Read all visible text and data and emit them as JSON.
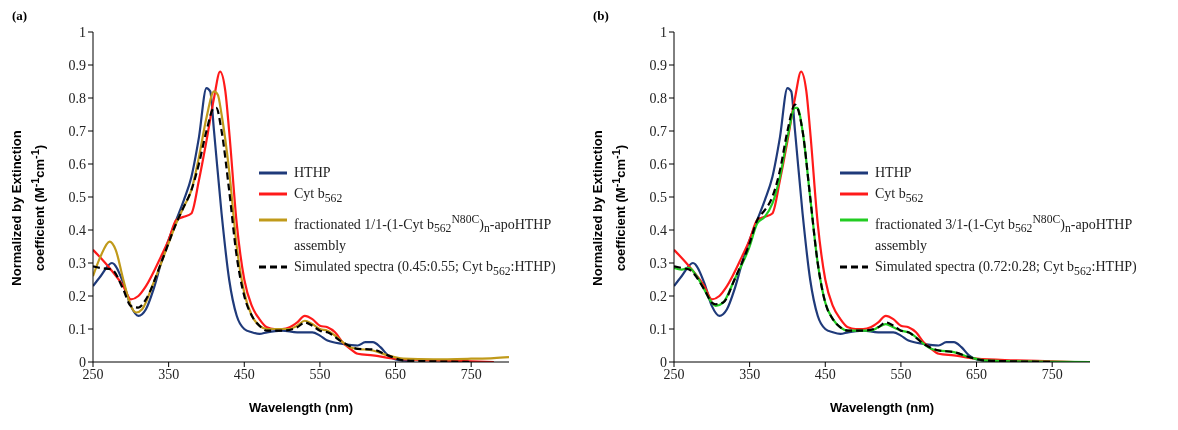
{
  "chart_data": [
    {
      "type": "line",
      "title": "(a)",
      "xlabel": "Wavelength (nm)",
      "ylabel": "Normalized by Extinction coefficient (M$^{-1}$cm$^{-1}$)",
      "xlim": [
        250,
        800
      ],
      "xticks": [
        250,
        350,
        450,
        550,
        650,
        750
      ],
      "ylim": [
        0,
        1
      ],
      "yticks": [
        0,
        0.1,
        0.2,
        0.3,
        0.4,
        0.5,
        0.6,
        0.7,
        0.8,
        0.9,
        1
      ],
      "legend": "right",
      "marker": "none",
      "series": [
        {
          "name": "HTHP",
          "color": "#1f3a7a",
          "line_style": "solid",
          "x": [
            250,
            260,
            275,
            290,
            300,
            310,
            320,
            330,
            340,
            350,
            360,
            370,
            380,
            390,
            400,
            405,
            410,
            420,
            430,
            440,
            450,
            460,
            470,
            480,
            500,
            520,
            540,
            550,
            560,
            580,
            600,
            610,
            620,
            630,
            640,
            650,
            670
          ],
          "values": [
            0.23,
            0.26,
            0.3,
            0.24,
            0.17,
            0.14,
            0.16,
            0.22,
            0.3,
            0.37,
            0.43,
            0.49,
            0.56,
            0.68,
            0.83,
            0.82,
            0.7,
            0.45,
            0.25,
            0.14,
            0.1,
            0.09,
            0.085,
            0.09,
            0.095,
            0.09,
            0.09,
            0.08,
            0.065,
            0.055,
            0.05,
            0.06,
            0.06,
            0.045,
            0.02,
            0.008,
            0.003
          ]
        },
        {
          "name": "Cyt b$_{562}$",
          "color": "#ff1a1a",
          "line_style": "solid",
          "x": [
            250,
            270,
            290,
            300,
            310,
            320,
            340,
            350,
            360,
            370,
            380,
            390,
            400,
            410,
            418,
            425,
            430,
            440,
            450,
            460,
            470,
            480,
            490,
            500,
            510,
            520,
            530,
            540,
            550,
            560,
            570,
            580,
            590,
            600,
            620,
            650,
            700,
            750,
            780
          ],
          "values": [
            0.34,
            0.29,
            0.23,
            0.19,
            0.2,
            0.23,
            0.32,
            0.37,
            0.43,
            0.44,
            0.45,
            0.55,
            0.67,
            0.8,
            0.88,
            0.82,
            0.7,
            0.42,
            0.25,
            0.17,
            0.13,
            0.105,
            0.1,
            0.1,
            0.105,
            0.12,
            0.14,
            0.13,
            0.11,
            0.105,
            0.09,
            0.06,
            0.04,
            0.025,
            0.02,
            0.01,
            0.005,
            0.002,
            0
          ]
        },
        {
          "name": "fractionated 1/1-(1-Cyt b$_{562}$$^{N80C}$)$_{n}$-apoHTHP assembly",
          "color": "#c09a1a",
          "line_style": "solid",
          "x": [
            250,
            260,
            272,
            280,
            290,
            300,
            307,
            315,
            330,
            350,
            360,
            370,
            380,
            390,
            400,
            410,
            415,
            420,
            430,
            440,
            450,
            460,
            470,
            480,
            500,
            510,
            520,
            530,
            540,
            550,
            560,
            570,
            580,
            590,
            600,
            620,
            640,
            660,
            700,
            750,
            780,
            800
          ],
          "values": [
            0.26,
            0.32,
            0.365,
            0.34,
            0.25,
            0.17,
            0.15,
            0.16,
            0.24,
            0.36,
            0.42,
            0.47,
            0.52,
            0.62,
            0.74,
            0.82,
            0.81,
            0.75,
            0.58,
            0.35,
            0.21,
            0.14,
            0.11,
            0.1,
            0.1,
            0.1,
            0.11,
            0.125,
            0.115,
            0.1,
            0.095,
            0.08,
            0.06,
            0.045,
            0.04,
            0.035,
            0.02,
            0.01,
            0.008,
            0.01,
            0.012,
            0.015
          ]
        },
        {
          "name": "Simulated spectra (0.45:0.55; Cyt b$_{562}$:HTHP)",
          "color": "#000000",
          "line_style": "dashed",
          "x": [
            250,
            260,
            275,
            290,
            300,
            310,
            320,
            340,
            360,
            370,
            380,
            390,
            400,
            410,
            413,
            420,
            430,
            440,
            450,
            460,
            470,
            480,
            500,
            520,
            530,
            540,
            550,
            560,
            580,
            600,
            620,
            640,
            660,
            700,
            750
          ],
          "values": [
            0.29,
            0.285,
            0.28,
            0.22,
            0.17,
            0.165,
            0.19,
            0.3,
            0.42,
            0.47,
            0.52,
            0.6,
            0.7,
            0.77,
            0.77,
            0.7,
            0.52,
            0.32,
            0.2,
            0.14,
            0.11,
            0.095,
            0.095,
            0.105,
            0.12,
            0.11,
            0.095,
            0.09,
            0.06,
            0.04,
            0.038,
            0.02,
            0.005,
            0.002,
            0
          ]
        }
      ]
    },
    {
      "type": "line",
      "title": "(b)",
      "xlabel": "Wavelength (nm)",
      "ylabel": "Normalized by Extinction coefficient (M$^{-1}$cm$^{-1}$)",
      "xlim": [
        250,
        800
      ],
      "xticks": [
        250,
        350,
        450,
        550,
        650,
        750
      ],
      "ylim": [
        0,
        1
      ],
      "yticks": [
        0,
        0.1,
        0.2,
        0.3,
        0.4,
        0.5,
        0.6,
        0.7,
        0.8,
        0.9,
        1
      ],
      "legend": "right",
      "marker": "none",
      "series": [
        {
          "name": "HTHP",
          "color": "#1f3a7a",
          "line_style": "solid",
          "x": [
            250,
            260,
            275,
            290,
            300,
            310,
            320,
            330,
            340,
            350,
            360,
            370,
            380,
            390,
            400,
            405,
            410,
            420,
            430,
            440,
            450,
            460,
            470,
            480,
            500,
            520,
            540,
            550,
            560,
            580,
            600,
            610,
            620,
            630,
            640,
            650,
            670
          ],
          "values": [
            0.23,
            0.26,
            0.3,
            0.24,
            0.17,
            0.14,
            0.16,
            0.22,
            0.3,
            0.37,
            0.43,
            0.49,
            0.56,
            0.68,
            0.83,
            0.82,
            0.7,
            0.45,
            0.25,
            0.14,
            0.1,
            0.09,
            0.085,
            0.09,
            0.095,
            0.09,
            0.09,
            0.08,
            0.065,
            0.055,
            0.05,
            0.06,
            0.06,
            0.045,
            0.02,
            0.008,
            0.003
          ]
        },
        {
          "name": "Cyt b$_{562}$",
          "color": "#ff1a1a",
          "line_style": "solid",
          "x": [
            250,
            270,
            290,
            300,
            310,
            320,
            340,
            350,
            360,
            370,
            380,
            390,
            400,
            410,
            418,
            425,
            430,
            440,
            450,
            460,
            470,
            480,
            490,
            500,
            510,
            520,
            530,
            540,
            550,
            560,
            570,
            580,
            590,
            600,
            620,
            650,
            700,
            750,
            780
          ],
          "values": [
            0.34,
            0.29,
            0.23,
            0.19,
            0.2,
            0.23,
            0.32,
            0.37,
            0.43,
            0.44,
            0.45,
            0.55,
            0.67,
            0.8,
            0.88,
            0.82,
            0.7,
            0.42,
            0.25,
            0.17,
            0.13,
            0.105,
            0.1,
            0.1,
            0.105,
            0.12,
            0.14,
            0.13,
            0.11,
            0.105,
            0.09,
            0.06,
            0.04,
            0.025,
            0.02,
            0.01,
            0.005,
            0.002,
            0
          ]
        },
        {
          "name": "fractionated 3/1-(1-Cyt b$_{562}$$^{N80C}$)$_{n}$-apoHTHP assembly",
          "color": "#22cc22",
          "line_style": "solid",
          "x": [
            250,
            260,
            270,
            280,
            290,
            300,
            305,
            315,
            330,
            350,
            360,
            370,
            380,
            390,
            400,
            410,
            413,
            420,
            430,
            440,
            450,
            460,
            470,
            480,
            500,
            510,
            520,
            530,
            540,
            550,
            560,
            570,
            580,
            590,
            600,
            620,
            640,
            660,
            700,
            800
          ],
          "values": [
            0.285,
            0.28,
            0.285,
            0.26,
            0.22,
            0.18,
            0.17,
            0.18,
            0.25,
            0.35,
            0.42,
            0.44,
            0.48,
            0.56,
            0.68,
            0.77,
            0.77,
            0.7,
            0.5,
            0.3,
            0.18,
            0.13,
            0.105,
            0.095,
            0.095,
            0.095,
            0.105,
            0.115,
            0.105,
            0.095,
            0.09,
            0.075,
            0.055,
            0.04,
            0.035,
            0.03,
            0.015,
            0.005,
            0.002,
            0
          ]
        },
        {
          "name": "Simulated spectra (0.72:0.28; Cyt b$_{562}$:HTHP)",
          "color": "#000000",
          "line_style": "dashed",
          "x": [
            250,
            260,
            270,
            290,
            300,
            305,
            315,
            330,
            350,
            360,
            370,
            380,
            390,
            400,
            410,
            420,
            430,
            440,
            450,
            460,
            470,
            480,
            500,
            520,
            530,
            540,
            550,
            560,
            580,
            600,
            620,
            640,
            660,
            700,
            750
          ],
          "values": [
            0.29,
            0.285,
            0.28,
            0.22,
            0.18,
            0.175,
            0.18,
            0.25,
            0.36,
            0.43,
            0.46,
            0.5,
            0.58,
            0.7,
            0.78,
            0.7,
            0.5,
            0.3,
            0.18,
            0.13,
            0.105,
            0.095,
            0.095,
            0.105,
            0.12,
            0.11,
            0.095,
            0.09,
            0.055,
            0.035,
            0.03,
            0.015,
            0.005,
            0.002,
            0
          ]
        }
      ]
    }
  ]
}
